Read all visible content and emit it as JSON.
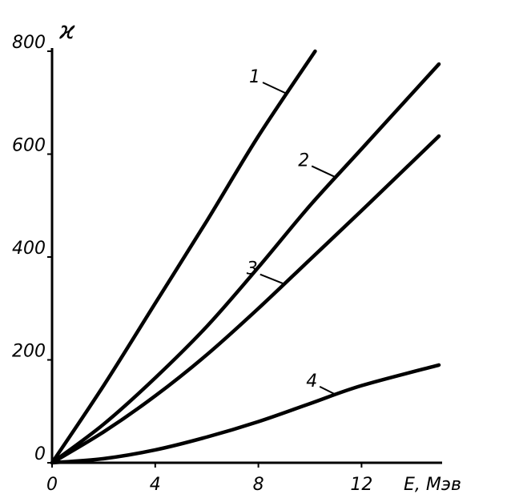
{
  "chart_data": {
    "type": "line",
    "xlabel": "E, Мэв",
    "ylabel": "ϰ",
    "xlim": [
      0,
      15
    ],
    "xticks": [
      0,
      4,
      8,
      12
    ],
    "ylim": [
      0,
      800
    ],
    "yticks": [
      0,
      200,
      400,
      600,
      800
    ],
    "grid": false,
    "series": [
      {
        "name": "1",
        "color": "#000000",
        "x": [
          0,
          2,
          4,
          6,
          8,
          10.2
        ],
        "values": [
          0,
          150,
          310,
          470,
          635,
          800
        ]
      },
      {
        "name": "2",
        "color": "#000000",
        "x": [
          0,
          2,
          4,
          6,
          8,
          10,
          12,
          15
        ],
        "values": [
          0,
          75,
          165,
          265,
          380,
          500,
          610,
          775
        ]
      },
      {
        "name": "3",
        "color": "#000000",
        "x": [
          0,
          2,
          4,
          6,
          8,
          10,
          12,
          15
        ],
        "values": [
          0,
          60,
          130,
          210,
          300,
          395,
          490,
          635
        ]
      },
      {
        "name": "4",
        "color": "#000000",
        "x": [
          0,
          2,
          4,
          6,
          8,
          10,
          12,
          15
        ],
        "values": [
          0,
          8,
          25,
          50,
          80,
          115,
          150,
          190
        ]
      }
    ]
  }
}
